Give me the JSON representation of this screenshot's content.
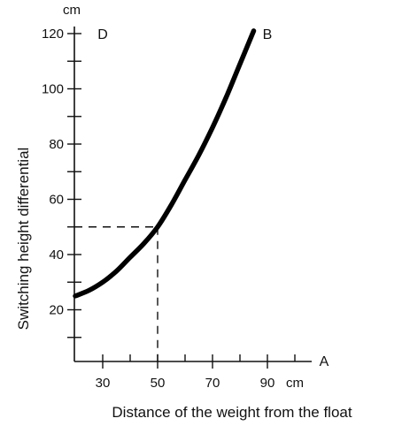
{
  "chart_data": {
    "type": "line",
    "xlabel": "Distance of the weight from the float",
    "ylabel": "Switching height differential",
    "x_unit": "cm",
    "y_unit": "cm",
    "xlim": [
      20,
      100
    ],
    "ylim": [
      10,
      122
    ],
    "x_ticks": [
      30,
      50,
      70,
      90
    ],
    "y_ticks": [
      20,
      40,
      60,
      80,
      100,
      120
    ],
    "grid": false,
    "series": [
      {
        "x": [
          20,
          25,
          30,
          35,
          40,
          45,
          50,
          55,
          60,
          65,
          70,
          75,
          80,
          85
        ],
        "y": [
          25,
          27,
          30,
          34,
          39,
          44,
          50,
          58,
          67,
          76,
          86,
          97,
          109,
          121
        ]
      }
    ],
    "guide_point": {
      "x": 50,
      "y": 50
    },
    "corner_labels": {
      "origin_axis_end": "A",
      "top_left": "D",
      "curve_end": "B"
    }
  }
}
